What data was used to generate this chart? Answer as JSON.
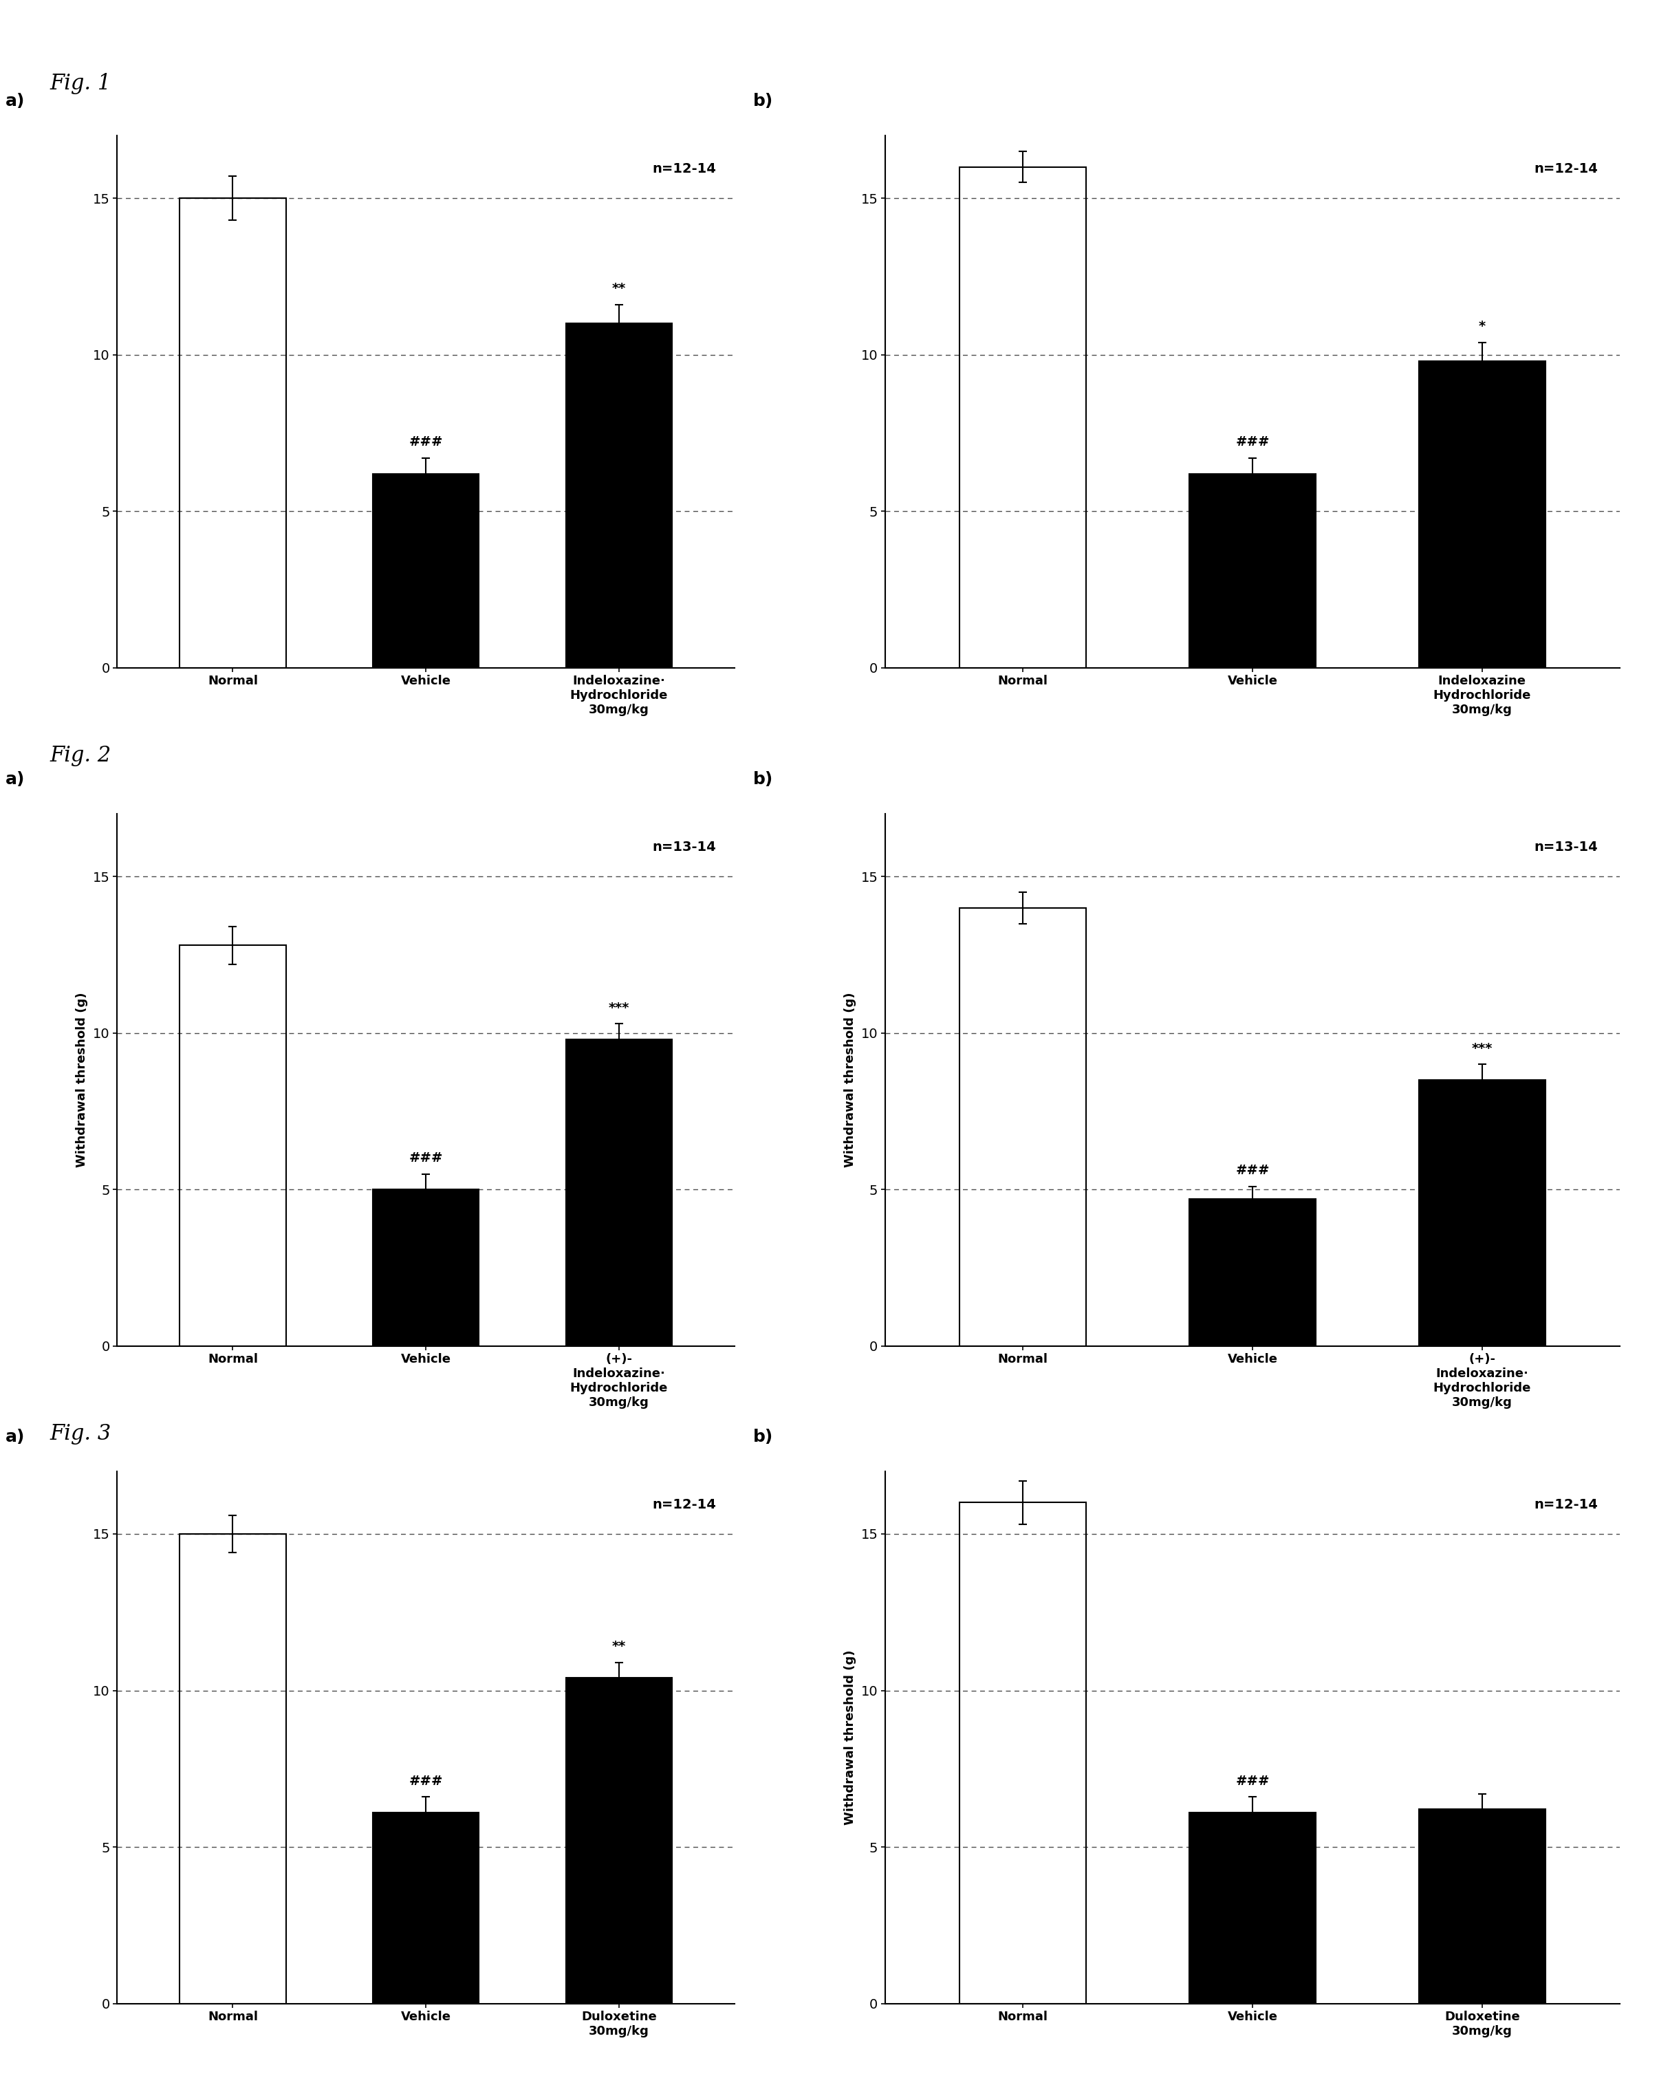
{
  "fig1a": {
    "bars": [
      15.0,
      6.2,
      11.0
    ],
    "errors": [
      0.7,
      0.5,
      0.6
    ],
    "colors": [
      "white",
      "black",
      "black"
    ],
    "annotations": [
      "",
      "###",
      "**"
    ],
    "x_labels": [
      "Normal",
      "Vehicle",
      "Indeloxazine·\nHydrochloride\n30mg/kg"
    ],
    "n_text": "n=12-14",
    "ylim": [
      0,
      17
    ],
    "yticks": [
      0,
      5,
      10,
      15
    ],
    "hlines": [
      15.0,
      10.0,
      5.0
    ],
    "panel_label": "a)"
  },
  "fig1b": {
    "bars": [
      16.0,
      6.2,
      9.8
    ],
    "errors": [
      0.5,
      0.5,
      0.6
    ],
    "colors": [
      "white",
      "black",
      "black"
    ],
    "annotations": [
      "",
      "###",
      "*"
    ],
    "x_labels": [
      "Normal",
      "Vehicle",
      "Indeloxazine\nHydrochloride\n30mg/kg"
    ],
    "n_text": "n=12-14",
    "ylim": [
      0,
      17
    ],
    "yticks": [
      0,
      5,
      10,
      15
    ],
    "hlines": [
      15.0,
      10.0,
      5.0
    ],
    "panel_label": "b)"
  },
  "fig2a": {
    "bars": [
      12.8,
      5.0,
      9.8
    ],
    "errors": [
      0.6,
      0.5,
      0.5
    ],
    "colors": [
      "white",
      "black",
      "black"
    ],
    "annotations": [
      "",
      "###",
      "***"
    ],
    "x_labels": [
      "Normal",
      "Vehicle",
      "(+)-\nIndeloxazine·\nHydrochloride\n30mg/kg"
    ],
    "n_text": "n=13-14",
    "ylim": [
      0,
      17
    ],
    "yticks": [
      0,
      5,
      10,
      15
    ],
    "hlines": [
      15.0,
      10.0,
      5.0
    ],
    "panel_label": "a)",
    "ylabel": "Withdrawal threshold (g)"
  },
  "fig2b": {
    "bars": [
      14.0,
      4.7,
      8.5
    ],
    "errors": [
      0.5,
      0.4,
      0.5
    ],
    "colors": [
      "white",
      "black",
      "black"
    ],
    "annotations": [
      "",
      "###",
      "***"
    ],
    "x_labels": [
      "Normal",
      "Vehicle",
      "(+)-\nIndeloxazine·\nHydrochloride\n30mg/kg"
    ],
    "n_text": "n=13-14",
    "ylim": [
      0,
      17
    ],
    "yticks": [
      0,
      5,
      10,
      15
    ],
    "hlines": [
      15.0,
      10.0,
      5.0
    ],
    "panel_label": "b)",
    "ylabel": "Withdrawal threshold (g)"
  },
  "fig3a": {
    "bars": [
      15.0,
      6.1,
      10.4
    ],
    "errors": [
      0.6,
      0.5,
      0.5
    ],
    "colors": [
      "white",
      "black",
      "black"
    ],
    "annotations": [
      "",
      "###",
      "**"
    ],
    "x_labels": [
      "Normal",
      "Vehicle",
      "Duloxetine\n30mg/kg"
    ],
    "n_text": "n=12-14",
    "ylim": [
      0,
      17
    ],
    "yticks": [
      0,
      5,
      10,
      15
    ],
    "hlines": [
      15.0,
      10.0,
      5.0
    ],
    "panel_label": "a)",
    "stz_label": true
  },
  "fig3b": {
    "bars": [
      16.0,
      6.1,
      6.2
    ],
    "errors": [
      0.7,
      0.5,
      0.5
    ],
    "colors": [
      "white",
      "black",
      "black"
    ],
    "annotations": [
      "",
      "###",
      ""
    ],
    "x_labels": [
      "Normal",
      "Vehicle",
      "Duloxetine\n30mg/kg"
    ],
    "n_text": "n=12-14",
    "ylim": [
      0,
      17
    ],
    "yticks": [
      0,
      5,
      10,
      15
    ],
    "hlines": [
      15.0,
      10.0,
      5.0
    ],
    "panel_label": "b)",
    "ylabel": "Withdrawal threshold (g)",
    "stz_label": true
  },
  "fig_labels": [
    "Fig. 1",
    "Fig. 2",
    "Fig. 3"
  ],
  "background_color": "#ffffff",
  "bar_width": 0.55,
  "edgecolor": "black"
}
